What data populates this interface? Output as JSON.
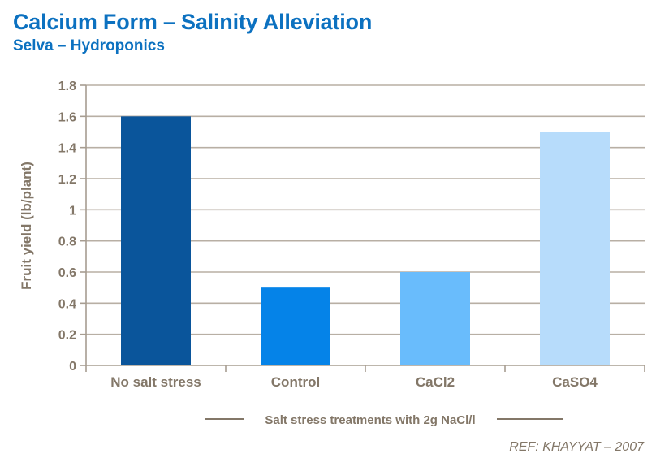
{
  "header": {
    "title": "Calcium Form – Salinity Alleviation",
    "subtitle": "Selva – Hydroponics"
  },
  "chart_data": {
    "type": "bar",
    "categories": [
      "No salt stress",
      "Control",
      "CaCl2",
      "CaSO4"
    ],
    "values": [
      1.6,
      0.5,
      0.6,
      1.5
    ],
    "bar_colors": [
      "#0A559B",
      "#0583E8",
      "#69BCFC",
      "#B7DCFB"
    ],
    "title": "Calcium Form – Salinity Alleviation",
    "subtitle": "Selva – Hydroponics",
    "xlabel": "Salt stress treatments with 2g NaCl/l",
    "ylabel": "Fruit yield (lb/plant)",
    "ylim": [
      0,
      1.8
    ],
    "ytick_step": 0.2,
    "ytick_labels": [
      "0",
      "0.2",
      "0.4",
      "0.6",
      "0.8",
      "1",
      "1.2",
      "1.4",
      "1.6",
      "1.8"
    ],
    "grid": true,
    "legend_position": "none"
  },
  "footnote": {
    "ref": "REF: KHAYYAT – 2007"
  },
  "colors": {
    "title_blue": "#0C71C0",
    "axis_text": "#837768",
    "gridline": "#B8AFA4",
    "axis_line": "#A79D91"
  }
}
